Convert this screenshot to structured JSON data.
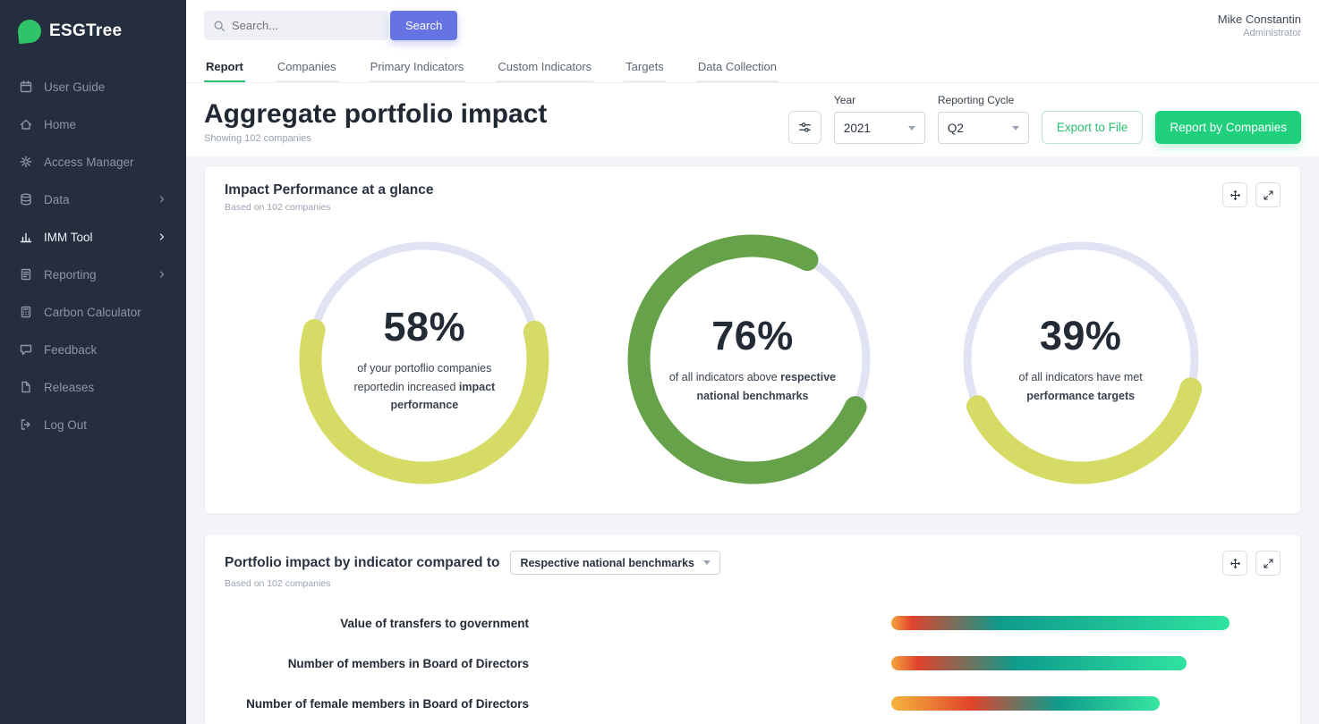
{
  "colors": {
    "sidebar_bg": "#242e3e",
    "brand_green": "#2fc46a",
    "primary_green_button": "#1fcf7c",
    "green_accent": "#2dbe71",
    "indigo_button": "#6674e3",
    "gauge_track": "#dfe3f3",
    "gauge_yellow": "#d6db66",
    "gauge_green": "#66a24a"
  },
  "sidebar": {
    "logo_text": "ESGTree",
    "items": [
      {
        "label": "User Guide",
        "icon": "calendar-icon"
      },
      {
        "label": "Home",
        "icon": "home-icon"
      },
      {
        "label": "Access Manager",
        "icon": "gear-icon"
      },
      {
        "label": "Data",
        "icon": "database-icon",
        "has_children": true
      },
      {
        "label": "IMM Tool",
        "icon": "bar-chart-icon",
        "has_children": true,
        "active": true
      },
      {
        "label": "Reporting",
        "icon": "report-icon",
        "has_children": true
      },
      {
        "label": "Carbon Calculator",
        "icon": "calculator-icon"
      },
      {
        "label": "Feedback",
        "icon": "feedback-icon"
      },
      {
        "label": "Releases",
        "icon": "releases-icon"
      },
      {
        "label": "Log Out",
        "icon": "logout-icon"
      }
    ]
  },
  "header": {
    "search_placeholder": "Search...",
    "search_button": "Search",
    "user_name": "Mike Constantin",
    "user_role": "Administrator"
  },
  "tabs": [
    {
      "label": "Report",
      "active": true
    },
    {
      "label": "Companies"
    },
    {
      "label": "Primary Indicators"
    },
    {
      "label": "Custom Indicators"
    },
    {
      "label": "Targets"
    },
    {
      "label": "Data Collection"
    }
  ],
  "page": {
    "title": "Aggregate portfolio impact",
    "subtitle": "Showing 102 companies",
    "year_label": "Year",
    "year_value": "2021",
    "cycle_label": "Reporting Cycle",
    "cycle_value": "Q2",
    "export_button": "Export to File",
    "report_button": "Report by Companies"
  },
  "chart_data": [
    {
      "type": "pie",
      "subtype": "donut-gauges",
      "title": "Impact Performance at a glance",
      "subtitle": "Based on 102 companies",
      "track_color": "#dfe3f3",
      "gauges": [
        {
          "value": 58,
          "unit": "%",
          "caption": "of your portoflio companies reportedin increased ",
          "caption_bold": "impact performance",
          "color": "#d6db66",
          "start_angle_deg": -14
        },
        {
          "value": 76,
          "unit": "%",
          "caption": "of all indicators above ",
          "caption_bold": "respective national benchmarks",
          "color": "#66a24a",
          "start_angle_deg": 25
        },
        {
          "value": 39,
          "unit": "%",
          "caption": "of all indicators have met ",
          "caption_bold": "performance targets",
          "color": "#d6db66",
          "start_angle_deg": 15
        }
      ]
    },
    {
      "type": "bar",
      "orientation": "horizontal",
      "title": "Portfolio impact by indicator compared to",
      "comparison_dropdown": "Respective national benchmarks",
      "subtitle": "Based on 102 companies",
      "categories": [
        "Value of transfers to government",
        "Number of members in Board of Directors",
        "Number of female members in Board of Directors"
      ],
      "values": [
        378,
        330,
        300
      ],
      "values_unit": "estimated bar length in px (relative magnitudes)",
      "gradient": [
        "#f5a43c",
        "#e0432c",
        "#0e9b8c",
        "#2fe3a0"
      ]
    }
  ]
}
